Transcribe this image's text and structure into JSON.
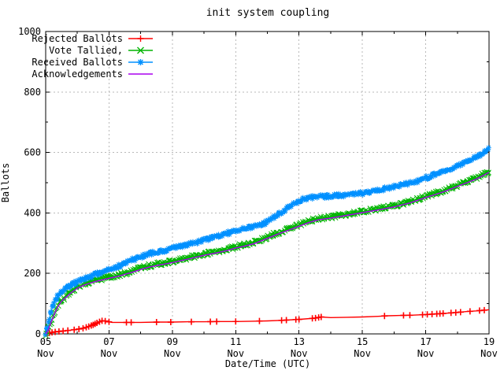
{
  "chart_data": {
    "type": "line",
    "title": "init system coupling",
    "xlabel": "Date/Time (UTC)",
    "ylabel": "Ballots",
    "x_axis": {
      "unit": "date (November, UTC)",
      "range_days": [
        5,
        19
      ],
      "major_ticks": [
        5,
        7,
        9,
        11,
        13,
        15,
        17,
        19
      ],
      "major_tick_labels": [
        "05",
        "07",
        "09",
        "11",
        "13",
        "15",
        "17",
        "19"
      ],
      "tick_sublabel": "Nov",
      "minor_ticks": [
        6,
        8,
        10,
        12,
        14,
        16,
        18
      ]
    },
    "y_axis": {
      "range": [
        0,
        1000
      ],
      "major_ticks": [
        0,
        200,
        400,
        600,
        800,
        1000
      ],
      "major_tick_labels": [
        "0",
        "200",
        "400",
        "600",
        "800",
        "1000"
      ],
      "minor_ticks": [
        100,
        300,
        500,
        700,
        900
      ]
    },
    "grid": {
      "show": true,
      "color": "#b9b9b9",
      "dash": "2,3"
    },
    "legend": {
      "position": "top-left",
      "box": false,
      "items": [
        "Rejected Ballots",
        "Vote Tallied,",
        "Received Ballots",
        "Acknowledgements"
      ]
    },
    "series": [
      {
        "name": "Rejected Ballots",
        "color": "#ff0000",
        "marker": "plus",
        "marker_size": 4,
        "line_width": 1.4,
        "dense_markers": false,
        "points": [
          [
            5.0,
            0
          ],
          [
            5.1,
            3
          ],
          [
            5.25,
            6
          ],
          [
            5.5,
            9
          ],
          [
            5.75,
            12
          ],
          [
            6.0,
            15
          ],
          [
            6.2,
            19
          ],
          [
            6.35,
            24
          ],
          [
            6.5,
            30
          ],
          [
            6.65,
            38
          ],
          [
            6.8,
            44
          ],
          [
            6.95,
            41
          ],
          [
            7.1,
            38
          ],
          [
            7.5,
            38
          ],
          [
            8.0,
            38
          ],
          [
            8.5,
            39
          ],
          [
            9.0,
            39
          ],
          [
            9.5,
            40
          ],
          [
            10.0,
            40
          ],
          [
            10.5,
            41
          ],
          [
            11.0,
            41
          ],
          [
            11.5,
            42
          ],
          [
            12.0,
            43
          ],
          [
            12.5,
            45
          ],
          [
            12.8,
            47
          ],
          [
            13.0,
            48
          ],
          [
            13.5,
            52
          ],
          [
            13.7,
            56
          ],
          [
            14.0,
            54
          ],
          [
            14.5,
            55
          ],
          [
            15.0,
            56
          ],
          [
            15.5,
            58
          ],
          [
            15.8,
            60
          ],
          [
            16.2,
            61
          ],
          [
            16.6,
            62
          ],
          [
            17.0,
            64
          ],
          [
            17.3,
            66
          ],
          [
            17.6,
            68
          ],
          [
            18.0,
            71
          ],
          [
            18.3,
            74
          ],
          [
            18.6,
            76
          ],
          [
            19.0,
            80
          ]
        ],
        "marker_days": [
          5.05,
          5.12,
          5.2,
          5.3,
          5.42,
          5.55,
          5.7,
          5.9,
          6.05,
          6.18,
          6.28,
          6.36,
          6.44,
          6.5,
          6.56,
          6.62,
          6.7,
          6.78,
          6.88,
          7.0,
          7.55,
          7.7,
          8.5,
          8.95,
          9.6,
          10.2,
          10.4,
          11.0,
          11.75,
          12.45,
          12.6,
          12.9,
          13.0,
          13.42,
          13.52,
          13.62,
          13.7,
          15.7,
          16.3,
          16.5,
          16.9,
          17.05,
          17.2,
          17.35,
          17.45,
          17.55,
          17.8,
          17.95,
          18.1,
          18.4,
          18.7,
          18.85
        ]
      },
      {
        "name": "Vote Tallied,",
        "color": "#00b400",
        "marker": "cross",
        "marker_size": 3.2,
        "line_width": 1,
        "dense_markers": true,
        "points": [
          [
            5.0,
            0
          ],
          [
            5.06,
            12
          ],
          [
            5.12,
            28
          ],
          [
            5.2,
            50
          ],
          [
            5.3,
            76
          ],
          [
            5.4,
            97
          ],
          [
            5.5,
            112
          ],
          [
            5.65,
            126
          ],
          [
            5.8,
            140
          ],
          [
            6.0,
            155
          ],
          [
            6.2,
            165
          ],
          [
            6.4,
            172
          ],
          [
            6.6,
            178
          ],
          [
            6.8,
            183
          ],
          [
            7.0,
            188
          ],
          [
            7.3,
            195
          ],
          [
            7.6,
            204
          ],
          [
            7.8,
            210
          ],
          [
            8.0,
            217
          ],
          [
            8.3,
            226
          ],
          [
            8.6,
            232
          ],
          [
            9.0,
            240
          ],
          [
            9.3,
            247
          ],
          [
            9.6,
            254
          ],
          [
            10.0,
            264
          ],
          [
            10.4,
            272
          ],
          [
            10.7,
            279
          ],
          [
            11.0,
            288
          ],
          [
            11.3,
            295
          ],
          [
            11.6,
            303
          ],
          [
            12.0,
            320
          ],
          [
            12.3,
            333
          ],
          [
            12.6,
            344
          ],
          [
            13.0,
            360
          ],
          [
            13.3,
            372
          ],
          [
            13.6,
            381
          ],
          [
            14.0,
            387
          ],
          [
            14.5,
            396
          ],
          [
            15.0,
            405
          ],
          [
            15.5,
            414
          ],
          [
            16.0,
            424
          ],
          [
            16.5,
            437
          ],
          [
            17.0,
            455
          ],
          [
            17.3,
            465
          ],
          [
            17.6,
            475
          ],
          [
            18.0,
            492
          ],
          [
            18.3,
            504
          ],
          [
            18.6,
            516
          ],
          [
            19.0,
            538
          ]
        ]
      },
      {
        "name": "Received Ballots",
        "color": "#0090ff",
        "marker": "asterisk",
        "marker_size": 3.4,
        "line_width": 1,
        "dense_markers": true,
        "points": [
          [
            5.0,
            2
          ],
          [
            5.04,
            15
          ],
          [
            5.08,
            35
          ],
          [
            5.12,
            55
          ],
          [
            5.17,
            75
          ],
          [
            5.22,
            92
          ],
          [
            5.3,
            112
          ],
          [
            5.4,
            128
          ],
          [
            5.5,
            140
          ],
          [
            5.65,
            152
          ],
          [
            5.8,
            161
          ],
          [
            6.0,
            171
          ],
          [
            6.2,
            181
          ],
          [
            6.4,
            190
          ],
          [
            6.6,
            197
          ],
          [
            6.8,
            204
          ],
          [
            7.0,
            211
          ],
          [
            7.2,
            219
          ],
          [
            7.4,
            228
          ],
          [
            7.6,
            237
          ],
          [
            7.8,
            247
          ],
          [
            8.0,
            256
          ],
          [
            8.2,
            263
          ],
          [
            8.4,
            268
          ],
          [
            8.6,
            272
          ],
          [
            8.8,
            277
          ],
          [
            9.0,
            283
          ],
          [
            9.3,
            290
          ],
          [
            9.6,
            298
          ],
          [
            10.0,
            310
          ],
          [
            10.3,
            319
          ],
          [
            10.6,
            329
          ],
          [
            11.0,
            341
          ],
          [
            11.2,
            348
          ],
          [
            11.5,
            354
          ],
          [
            11.8,
            360
          ],
          [
            12.0,
            371
          ],
          [
            12.2,
            385
          ],
          [
            12.45,
            402
          ],
          [
            12.7,
            420
          ],
          [
            13.0,
            438
          ],
          [
            13.2,
            448
          ],
          [
            13.5,
            453
          ],
          [
            14.0,
            456
          ],
          [
            14.5,
            460
          ],
          [
            15.0,
            465
          ],
          [
            15.3,
            471
          ],
          [
            15.6,
            477
          ],
          [
            16.0,
            486
          ],
          [
            16.3,
            493
          ],
          [
            16.6,
            501
          ],
          [
            17.0,
            516
          ],
          [
            17.3,
            528
          ],
          [
            17.6,
            539
          ],
          [
            18.0,
            557
          ],
          [
            18.3,
            571
          ],
          [
            18.6,
            587
          ],
          [
            18.8,
            598
          ],
          [
            19.0,
            620
          ]
        ]
      },
      {
        "name": "Acknowledgements",
        "color": "#aa00ee",
        "marker": "none",
        "marker_size": 0,
        "line_width": 1.4,
        "dense_markers": false,
        "points": [
          [
            5.0,
            0
          ],
          [
            5.06,
            8
          ],
          [
            5.12,
            24
          ],
          [
            5.2,
            46
          ],
          [
            5.3,
            72
          ],
          [
            5.4,
            93
          ],
          [
            5.5,
            108
          ],
          [
            5.65,
            122
          ],
          [
            5.8,
            136
          ],
          [
            6.0,
            151
          ],
          [
            6.2,
            161
          ],
          [
            6.4,
            168
          ],
          [
            6.6,
            174
          ],
          [
            6.8,
            179
          ],
          [
            7.0,
            184
          ],
          [
            7.3,
            191
          ],
          [
            7.6,
            200
          ],
          [
            7.8,
            206
          ],
          [
            8.0,
            213
          ],
          [
            8.3,
            222
          ],
          [
            8.6,
            228
          ],
          [
            9.0,
            236
          ],
          [
            9.3,
            243
          ],
          [
            9.6,
            250
          ],
          [
            10.0,
            260
          ],
          [
            10.4,
            268
          ],
          [
            10.7,
            275
          ],
          [
            11.0,
            284
          ],
          [
            11.3,
            291
          ],
          [
            11.6,
            299
          ],
          [
            12.0,
            316
          ],
          [
            12.3,
            329
          ],
          [
            12.6,
            340
          ],
          [
            13.0,
            356
          ],
          [
            13.3,
            368
          ],
          [
            13.6,
            377
          ],
          [
            14.0,
            383
          ],
          [
            14.5,
            392
          ],
          [
            15.0,
            401
          ],
          [
            15.5,
            410
          ],
          [
            16.0,
            420
          ],
          [
            16.5,
            433
          ],
          [
            17.0,
            451
          ],
          [
            17.3,
            461
          ],
          [
            17.6,
            471
          ],
          [
            18.0,
            488
          ],
          [
            18.3,
            500
          ],
          [
            18.6,
            512
          ],
          [
            19.0,
            534
          ]
        ]
      }
    ]
  }
}
